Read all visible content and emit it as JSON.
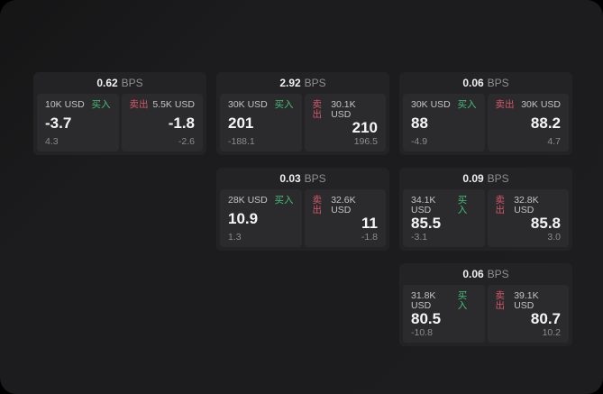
{
  "labels": {
    "buy": "买入",
    "sell": "卖出",
    "bps_unit": "BPS"
  },
  "colors": {
    "buy_green": "#46be78",
    "sell_red": "#d45669",
    "page_background": "#1d1d1f",
    "card_background": "#232325",
    "panel_background": "#2b2b2d"
  },
  "cards": [
    {
      "bps": "0.62",
      "buy": {
        "size": "10K USD",
        "price": "-3.7",
        "delta": "4.3"
      },
      "sell": {
        "size": "5.5K USD",
        "price": "-1.8",
        "delta": "-2.6"
      }
    },
    {
      "bps": "2.92",
      "buy": {
        "size": "30K USD",
        "price": "201",
        "delta": "-188.1"
      },
      "sell": {
        "size": "30.1K USD",
        "price": "210",
        "delta": "196.5"
      }
    },
    {
      "bps": "0.06",
      "buy": {
        "size": "30K USD",
        "price": "88",
        "delta": "-4.9"
      },
      "sell": {
        "size": "30K USD",
        "price": "88.2",
        "delta": "4.7"
      }
    },
    {
      "bps": "0.03",
      "buy": {
        "size": "28K USD",
        "price": "10.9",
        "delta": "1.3"
      },
      "sell": {
        "size": "32.6K USD",
        "price": "11",
        "delta": "-1.8"
      }
    },
    {
      "bps": "0.09",
      "buy": {
        "size": "34.1K USD",
        "price": "85.5",
        "delta": "-3.1"
      },
      "sell": {
        "size": "32.8K USD",
        "price": "85.8",
        "delta": "3.0"
      }
    },
    {
      "bps": "0.06",
      "buy": {
        "size": "31.8K USD",
        "price": "80.5",
        "delta": "-10.8"
      },
      "sell": {
        "size": "39.1K USD",
        "price": "80.7",
        "delta": "10.2"
      }
    }
  ]
}
